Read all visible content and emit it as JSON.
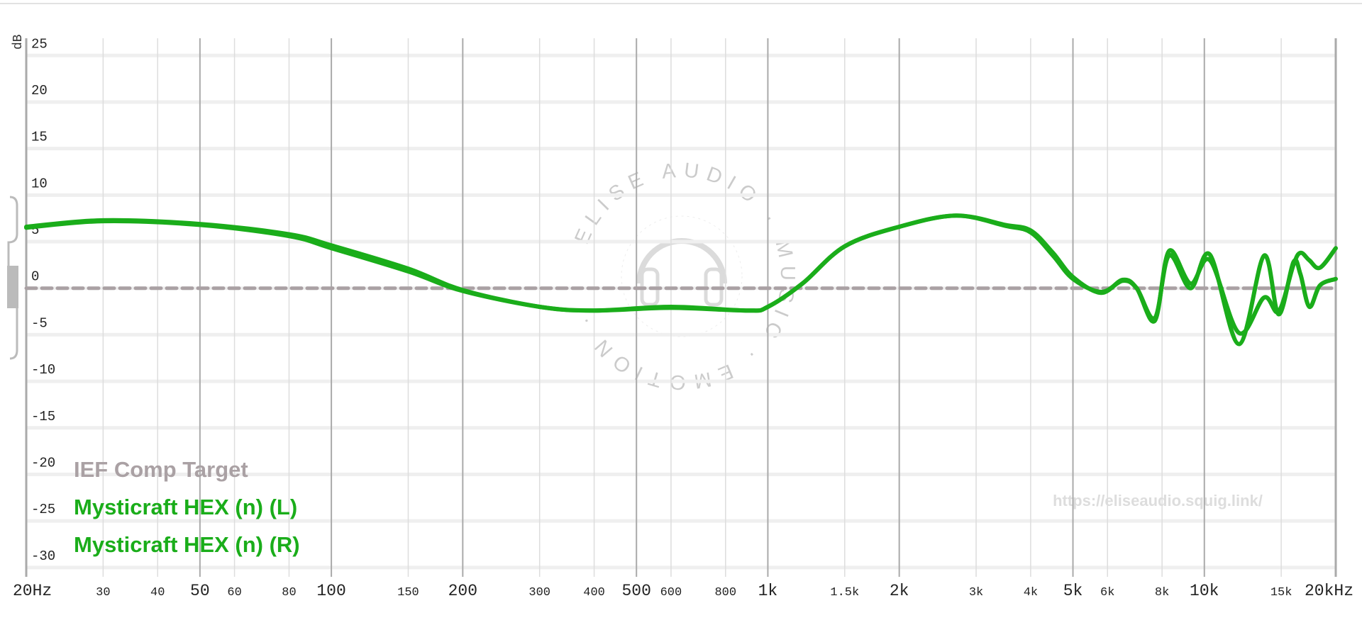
{
  "chart_data": {
    "type": "line",
    "y_label": "dB",
    "log_x": true,
    "grid": true,
    "xlim": [
      20,
      20000
    ],
    "ylim": [
      -31,
      27
    ],
    "yticks": [
      25,
      20,
      15,
      10,
      5,
      0,
      -5,
      -10,
      -15,
      -20,
      -25,
      -30
    ],
    "xticks": [
      {
        "value": 20,
        "label": "20Hz"
      },
      30,
      40,
      50,
      60,
      80,
      100,
      150,
      200,
      300,
      400,
      500,
      600,
      800,
      {
        "value": 1000,
        "label": "1k"
      },
      {
        "value": 1500,
        "label": "1.5k"
      },
      {
        "value": 2000,
        "label": "2k"
      },
      {
        "value": 3000,
        "label": "3k"
      },
      {
        "value": 4000,
        "label": "4k"
      },
      {
        "value": 5000,
        "label": "5k"
      },
      {
        "value": 6000,
        "label": "6k"
      },
      {
        "value": 8000,
        "label": "8k"
      },
      {
        "value": 10000,
        "label": "10k"
      },
      {
        "value": 15000,
        "label": "15k"
      },
      {
        "value": 20000,
        "label": "20kHz"
      }
    ],
    "x": [
      20,
      30,
      50,
      80,
      100,
      150,
      200,
      300,
      400,
      600,
      900,
      1000,
      1200,
      1500,
      2000,
      2700,
      3500,
      4000,
      4500,
      5000,
      5800,
      6500,
      7000,
      7700,
      8300,
      9300,
      10300,
      12000,
      13700,
      14800,
      16000,
      16600,
      17400,
      18400,
      20000
    ],
    "series": [
      {
        "name": "IEF Comp Target",
        "color": "#aaa1a4",
        "dashed": true,
        "values": [
          0,
          0,
          0,
          0,
          0,
          0,
          0,
          0,
          0,
          0,
          0,
          0,
          0,
          0,
          0,
          0,
          0,
          0,
          0,
          0,
          0,
          0,
          0,
          0,
          0,
          0,
          0,
          0,
          0,
          0,
          0,
          0,
          0,
          0,
          0
        ]
      },
      {
        "name": "Mysticraft HEX (n) (L)",
        "color": "#1aad1a",
        "values": [
          6.5,
          7.2,
          6.8,
          5.6,
          4.3,
          1.8,
          -0.3,
          -2.0,
          -2.4,
          -2.1,
          -2.4,
          -2.0,
          0.5,
          4.5,
          6.6,
          7.8,
          6.7,
          6.0,
          3.5,
          1.0,
          -0.4,
          0.8,
          0,
          -3.2,
          3.5,
          0,
          3.6,
          -6.0,
          3.5,
          -2.8,
          2.8,
          1.5,
          -2.0,
          0.3,
          1.0
        ]
      },
      {
        "name": "Mysticraft HEX (n) (R)",
        "color": "#1aad1a",
        "values": [
          6.6,
          7.3,
          6.9,
          5.8,
          4.6,
          2.1,
          -0.2,
          -2.0,
          -2.4,
          -2.0,
          -2.4,
          -2.0,
          0.5,
          4.5,
          6.6,
          7.8,
          6.8,
          6.2,
          3.8,
          1.2,
          -0.5,
          0.9,
          0,
          -3.5,
          4.0,
          0.5,
          3.0,
          -4.8,
          -1.0,
          -2.5,
          2.5,
          3.8,
          3.0,
          2.2,
          4.3
        ]
      }
    ],
    "watermark": "ELISE AUDIO · MUSIC · EMOTION ·",
    "url": "https://eliseaudio.squig.link/"
  }
}
